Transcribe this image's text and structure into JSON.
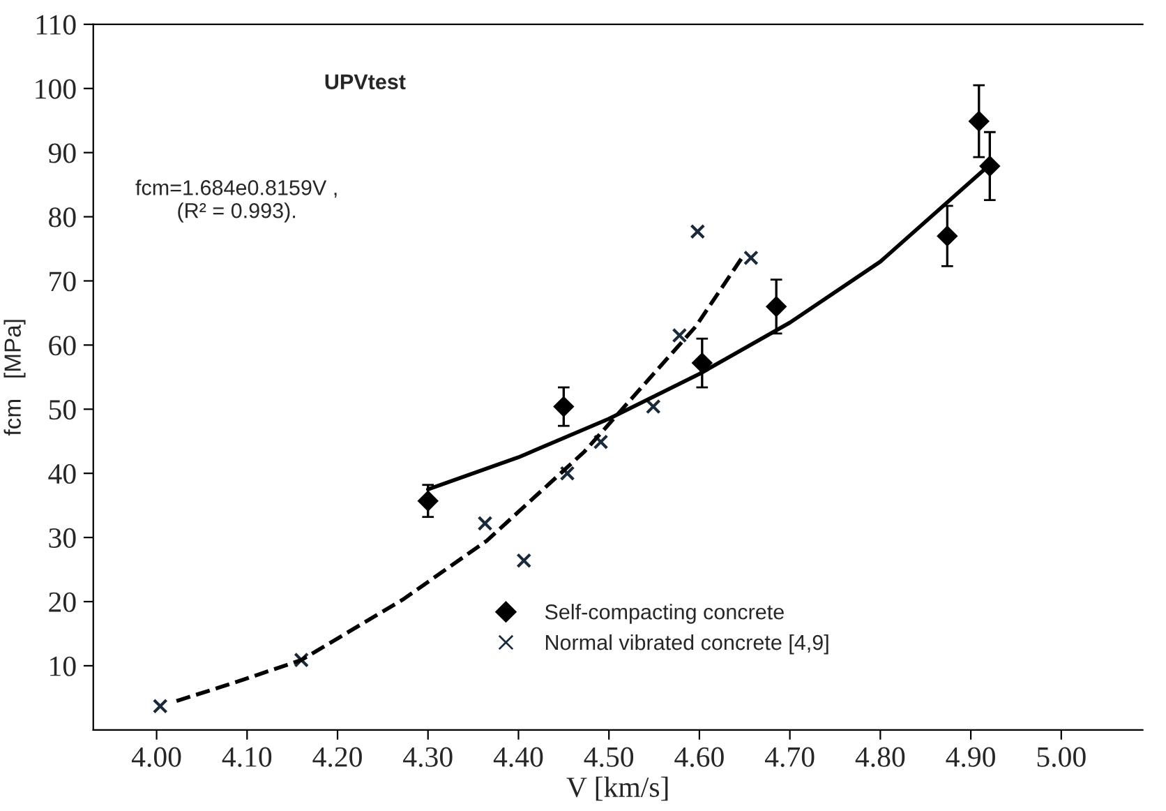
{
  "chart_data": {
    "type": "scatter",
    "xlabel": "V [km/s]",
    "ylabel": "fcm   [MPa]",
    "annotations": [
      "UPVtest",
      "fcm=1.684e0.8159V ,\n(R² = 0.993)."
    ],
    "xlim": [
      3.93,
      5.09
    ],
    "ylim": [
      0,
      110
    ],
    "xticks": [
      {
        "value": 4.0,
        "label": "4.00"
      },
      {
        "value": 4.1,
        "label": "4.10"
      },
      {
        "value": 4.2,
        "label": "4.20"
      },
      {
        "value": 4.3,
        "label": "4.30"
      },
      {
        "value": 4.4,
        "label": "4.40"
      },
      {
        "value": 4.5,
        "label": "4.50"
      },
      {
        "value": 4.6,
        "label": "4.60"
      },
      {
        "value": 4.7,
        "label": "4.70"
      },
      {
        "value": 4.8,
        "label": "4.80"
      },
      {
        "value": 4.9,
        "label": "4.90"
      },
      {
        "value": 5.0,
        "label": "5.00"
      }
    ],
    "yticks": [
      10,
      20,
      30,
      40,
      50,
      60,
      70,
      80,
      90,
      100,
      110
    ],
    "grid": false,
    "legend": "bottom right",
    "series": [
      {
        "name": "Self-compacting concrete",
        "marker": "diamond",
        "color": "#000000",
        "x": [
          4.3,
          4.45,
          4.603,
          4.685,
          4.874,
          4.909,
          4.921
        ],
        "values": [
          35.7,
          50.4,
          57.2,
          66,
          77,
          94.9,
          87.9
        ],
        "errors": [
          2.5,
          3,
          3.8,
          4.2,
          4.7,
          5.6,
          5.3
        ]
      },
      {
        "name": "Normal vibrated concrete [4,9]",
        "marker": "cross",
        "color": "#1a2a3a",
        "x": [
          4.004,
          4.16,
          4.363,
          4.406,
          4.454,
          4.491,
          4.549,
          4.578,
          4.598,
          4.657
        ],
        "values": [
          3.7,
          10.9,
          32.2,
          26.4,
          40.0,
          44.9,
          50.4,
          61.5,
          77.7,
          73.6
        ]
      },
      {
        "type": "line",
        "line_style": "solid",
        "color": "#000000",
        "x": [
          4.3,
          4.4,
          4.5,
          4.6,
          4.7,
          4.8,
          4.92
        ],
        "values": [
          37.5,
          42.5,
          48.5,
          55.5,
          63.5,
          73,
          88
        ]
      },
      {
        "type": "line",
        "line_style": "dashed",
        "color": "#000000",
        "x": [
          4.022,
          4.091,
          4.16,
          4.272,
          4.365,
          4.473,
          4.596,
          4.647
        ],
        "values": [
          4.5,
          7.6,
          10.9,
          20.3,
          29.5,
          43.4,
          62.9,
          73.6
        ]
      }
    ]
  }
}
